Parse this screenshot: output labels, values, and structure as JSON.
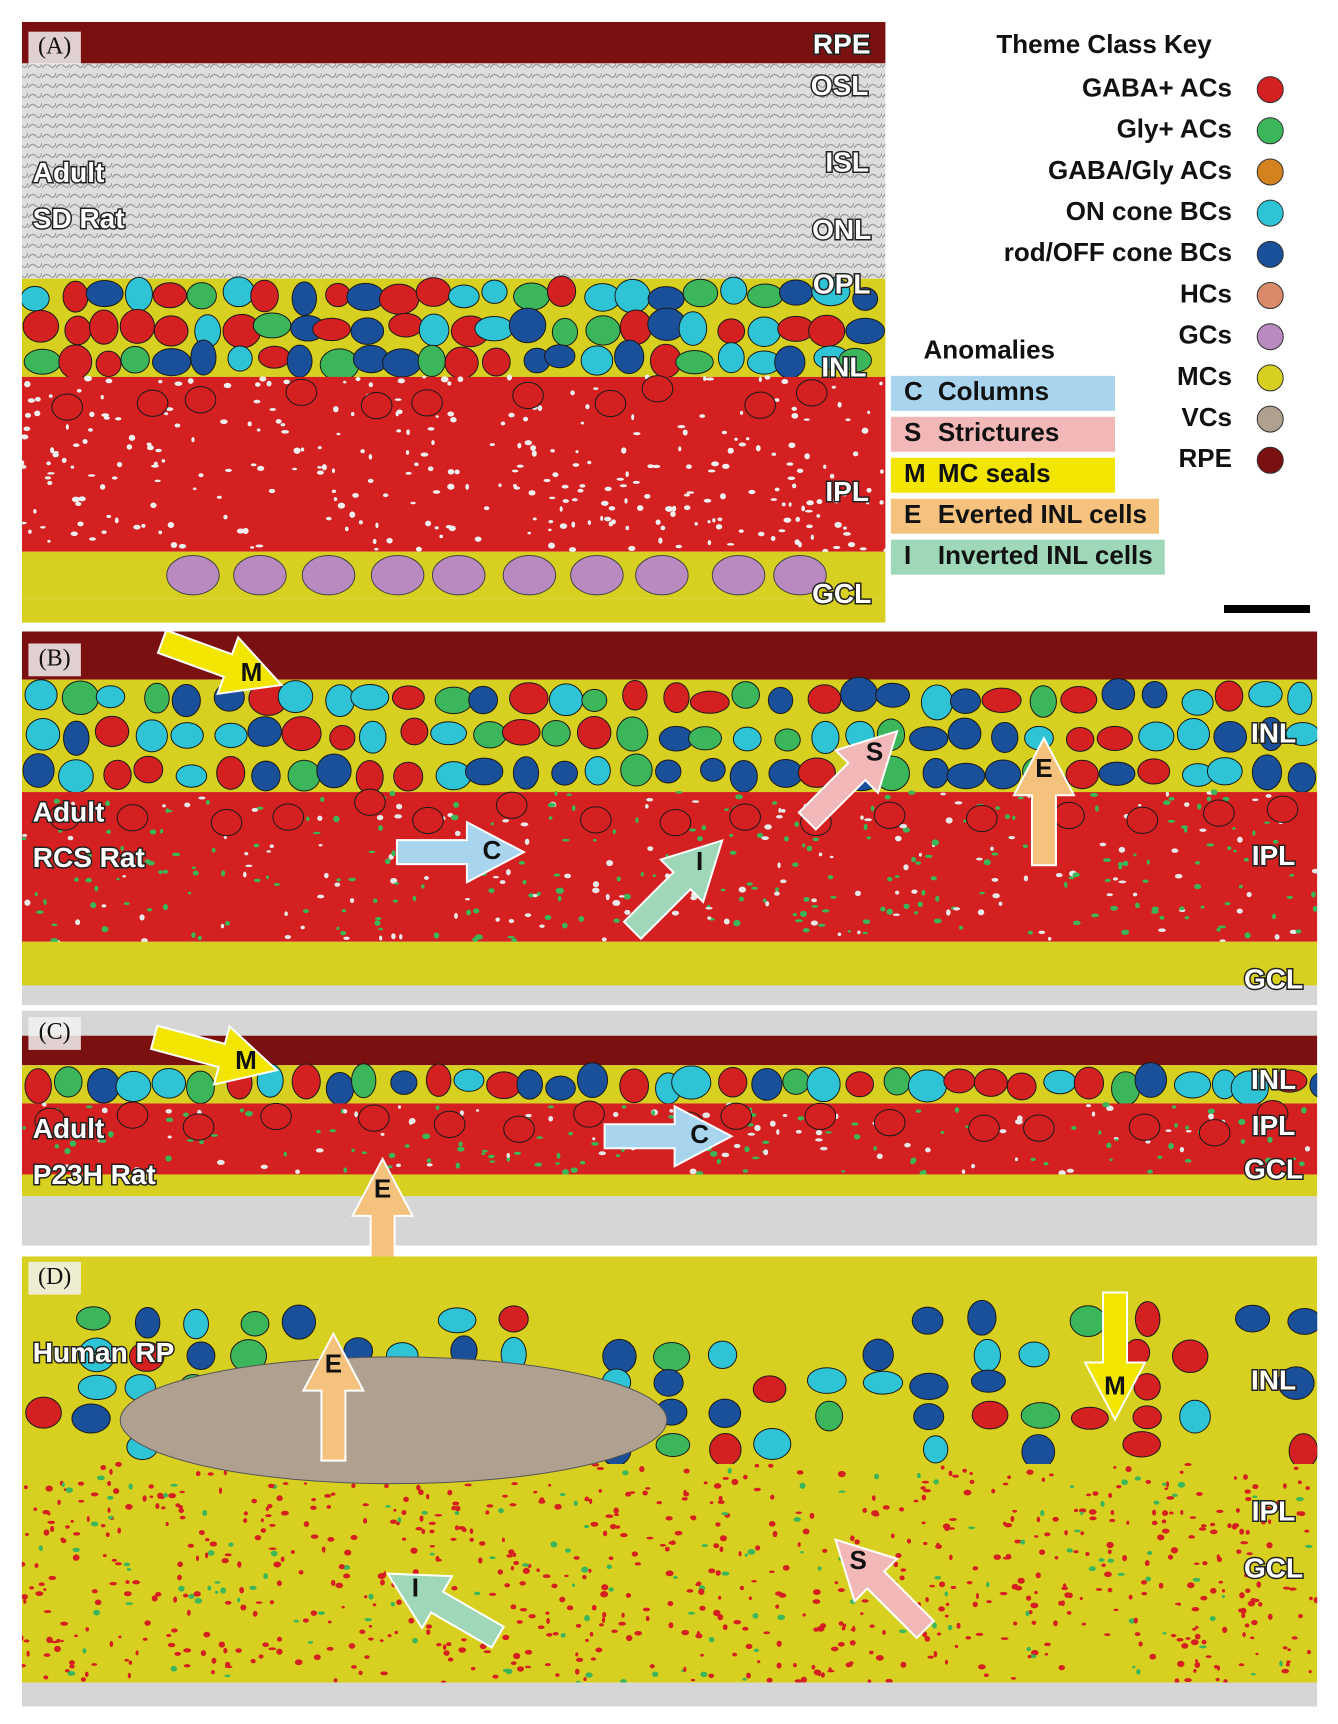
{
  "legend": {
    "title": "Theme Class Key",
    "items": [
      {
        "label": "GABA+ ACs",
        "color": "#d42020"
      },
      {
        "label": "Gly+ ACs",
        "color": "#3cb65a"
      },
      {
        "label": "GABA/Gly ACs",
        "color": "#d4821e"
      },
      {
        "label": "ON cone BCs",
        "color": "#2ec4d6"
      },
      {
        "label": "rod/OFF cone BCs",
        "color": "#1a4f9a"
      },
      {
        "label": "HCs",
        "color": "#d98a6a"
      },
      {
        "label": "GCs",
        "color": "#b98ac0"
      },
      {
        "label": "MCs",
        "color": "#d8d020"
      },
      {
        "label": "VCs",
        "color": "#b0a090"
      },
      {
        "label": "RPE",
        "color": "#7a1010"
      }
    ]
  },
  "anomalies": {
    "title": "Anomalies",
    "items": [
      {
        "letter": "C",
        "label": "Columns",
        "color": "#a9d4ee"
      },
      {
        "letter": "S",
        "label": "Strictures",
        "color": "#f2b8b8"
      },
      {
        "letter": "M",
        "label": "MC seals",
        "color": "#f2e600"
      },
      {
        "letter": "E",
        "label": "Everted INL cells",
        "color": "#f5c27e"
      },
      {
        "letter": "I",
        "label": "Inverted INL cells",
        "color": "#9fd8b8"
      }
    ]
  },
  "panels": [
    {
      "tag": "(A)",
      "sample": [
        "Adult",
        "SD Rat"
      ],
      "layers": [
        "RPE",
        "OSL",
        "ISL",
        "ONL",
        "OPL",
        "INL",
        "IPL",
        "GCL"
      ],
      "arrows": []
    },
    {
      "tag": "(B)",
      "sample": [
        "Adult",
        "RCS Rat"
      ],
      "layers": [
        "INL",
        "IPL",
        "GCL"
      ],
      "arrows": [
        "M",
        "C",
        "S",
        "E",
        "I"
      ]
    },
    {
      "tag": "(C)",
      "sample": [
        "Adult",
        "P23H Rat"
      ],
      "layers": [
        "INL",
        "IPL",
        "GCL"
      ],
      "arrows": [
        "M",
        "E",
        "C"
      ]
    },
    {
      "tag": "(D)",
      "sample": [
        "Human RP"
      ],
      "layers": [
        "INL",
        "IPL",
        "GCL"
      ],
      "arrows": [
        "E",
        "M",
        "S",
        "I"
      ]
    }
  ]
}
